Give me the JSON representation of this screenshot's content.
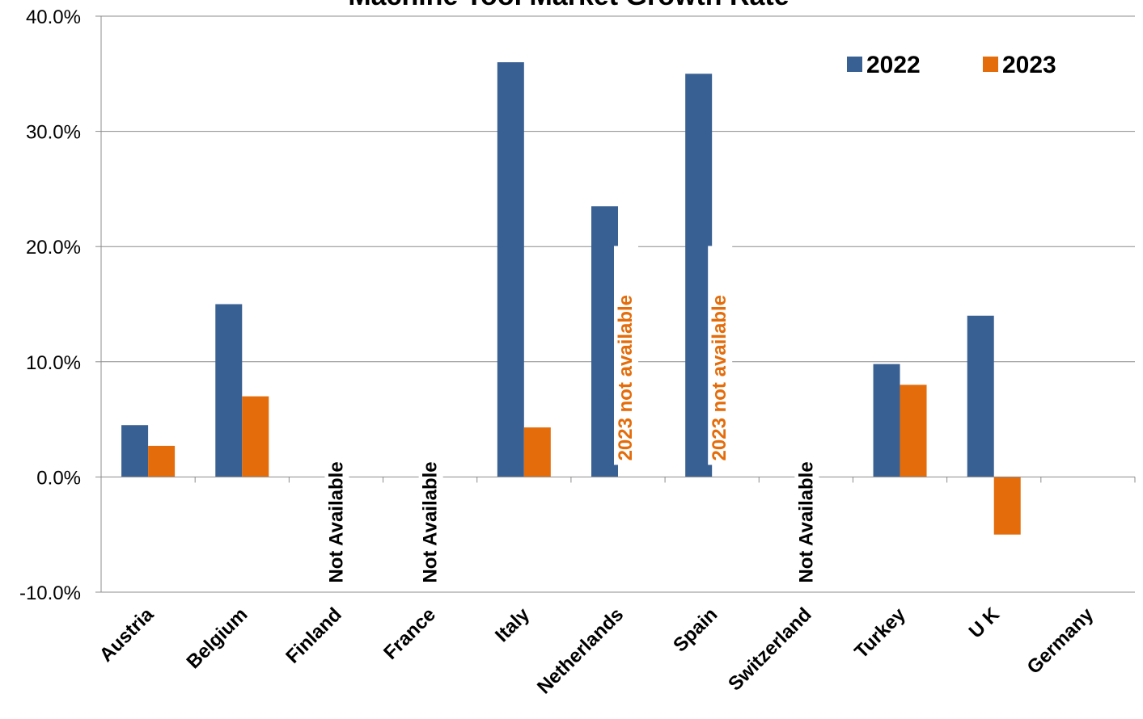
{
  "chart_data": {
    "type": "bar",
    "title": "Machine Tool Market Growth Rate",
    "categories": [
      "Austria",
      "Belgium",
      "Finland",
      "France",
      "Italy",
      "Netherlands",
      "Spain",
      "Switzerland",
      "Turkey",
      "U K",
      "Germany"
    ],
    "series": [
      {
        "name": "2022",
        "color": "#386093",
        "values": [
          4.5,
          15.0,
          null,
          null,
          36.0,
          23.5,
          35.0,
          null,
          9.8,
          14.0,
          null
        ]
      },
      {
        "name": "2023",
        "color": "#E46C0A",
        "values": [
          2.7,
          7.0,
          null,
          null,
          4.3,
          null,
          null,
          null,
          8.0,
          -5.0,
          null
        ]
      }
    ],
    "ylim": [
      -10,
      40
    ],
    "yticks": [
      -10,
      0,
      10,
      20,
      30,
      40
    ],
    "ytick_labels": [
      "-10.0%",
      "0.0%",
      "10.0%",
      "20.0%",
      "30.0%",
      "40.0%"
    ],
    "grid": true,
    "legend_position": "top-right",
    "annotations": [
      {
        "category": "Finland",
        "text": "Not Available",
        "color": "#000000"
      },
      {
        "category": "France",
        "text": "Not Available",
        "color": "#000000"
      },
      {
        "category": "Netherlands",
        "text": "2023 not available",
        "color": "#E46C0A"
      },
      {
        "category": "Spain",
        "text": "2023 not available",
        "color": "#E46C0A"
      },
      {
        "category": "Switzerland",
        "text": "Not Available",
        "color": "#000000"
      }
    ]
  }
}
